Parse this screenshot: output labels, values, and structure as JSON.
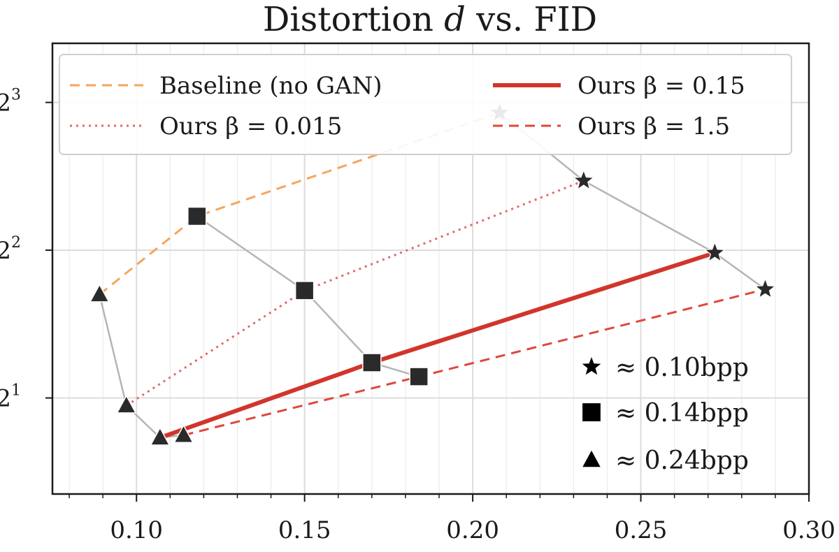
{
  "chart_data": {
    "type": "line",
    "title": "Distortion d vs. FID",
    "title_parts": {
      "prefix": "Distortion ",
      "variable": "d",
      "suffix": " vs. FID"
    },
    "xlabel": "",
    "ylabel": "",
    "xlim": [
      0.075,
      0.3
    ],
    "ylim_log2": [
      0.35,
      3.4
    ],
    "yscale": "log2",
    "grid": true,
    "x_ticks": [
      {
        "value": 0.1,
        "label": "0.10"
      },
      {
        "value": 0.15,
        "label": "0.15"
      },
      {
        "value": 0.2,
        "label": "0.20"
      },
      {
        "value": 0.25,
        "label": "0.25"
      },
      {
        "value": 0.3,
        "label": "0.30"
      }
    ],
    "y_ticks": [
      {
        "exp": 1,
        "base": "2",
        "sup": "1"
      },
      {
        "exp": 2,
        "base": "2",
        "sup": "2"
      },
      {
        "exp": 3,
        "base": "2",
        "sup": "3"
      }
    ],
    "series": [
      {
        "name": "Baseline (no GAN)",
        "color": "#f5a55a",
        "style": "dashed",
        "points": [
          {
            "x": 0.089,
            "y": 3.25,
            "marker": "triangle"
          },
          {
            "x": 0.118,
            "y": 4.69,
            "marker": "square"
          },
          {
            "x": 0.208,
            "y": 7.62,
            "marker": "star"
          }
        ]
      },
      {
        "name": "Ours β = 0.015",
        "color": "#e06a6a",
        "style": "dotted",
        "points": [
          {
            "x": 0.097,
            "y": 1.93,
            "marker": "triangle"
          },
          {
            "x": 0.15,
            "y": 3.31,
            "marker": "square"
          },
          {
            "x": 0.233,
            "y": 5.54,
            "marker": "star"
          }
        ]
      },
      {
        "name": "Ours β = 0.15",
        "color": "#d1352b",
        "style": "solid",
        "points": [
          {
            "x": 0.107,
            "y": 1.66,
            "marker": "triangle"
          },
          {
            "x": 0.17,
            "y": 2.36,
            "marker": "square"
          },
          {
            "x": 0.272,
            "y": 3.95,
            "marker": "star"
          }
        ]
      },
      {
        "name": "Ours β = 1.5",
        "color": "#e0473c",
        "style": "dashed",
        "points": [
          {
            "x": 0.114,
            "y": 1.68,
            "marker": "triangle"
          },
          {
            "x": 0.184,
            "y": 2.21,
            "marker": "square"
          },
          {
            "x": 0.287,
            "y": 3.33,
            "marker": "star"
          }
        ]
      }
    ],
    "connectors": [
      {
        "marker": "triangle",
        "color": "#b5b5b5",
        "points": [
          [
            0.089,
            3.25
          ],
          [
            0.097,
            1.93
          ],
          [
            0.107,
            1.66
          ],
          [
            0.114,
            1.68
          ]
        ]
      },
      {
        "marker": "square",
        "color": "#b5b5b5",
        "points": [
          [
            0.118,
            4.69
          ],
          [
            0.15,
            3.31
          ],
          [
            0.17,
            2.36
          ],
          [
            0.184,
            2.21
          ]
        ]
      },
      {
        "marker": "star",
        "color": "#b5b5b5",
        "points": [
          [
            0.208,
            7.62
          ],
          [
            0.233,
            5.54
          ],
          [
            0.272,
            3.95
          ],
          [
            0.287,
            3.33
          ]
        ]
      }
    ],
    "legend": {
      "placement": "top",
      "entries": [
        {
          "series": 0,
          "label": "Baseline (no GAN)"
        },
        {
          "series": 2,
          "label": "Ours β = 0.15"
        },
        {
          "series": 1,
          "label": "Ours β = 0.015"
        },
        {
          "series": 3,
          "label": "Ours β = 1.5"
        }
      ]
    },
    "marker_legend": {
      "placement": "bottom-right",
      "entries": [
        {
          "marker": "star",
          "label": "≈ 0.10bpp"
        },
        {
          "marker": "square",
          "label": "≈ 0.14bpp"
        },
        {
          "marker": "triangle",
          "label": "≈ 0.24bpp"
        }
      ]
    }
  }
}
